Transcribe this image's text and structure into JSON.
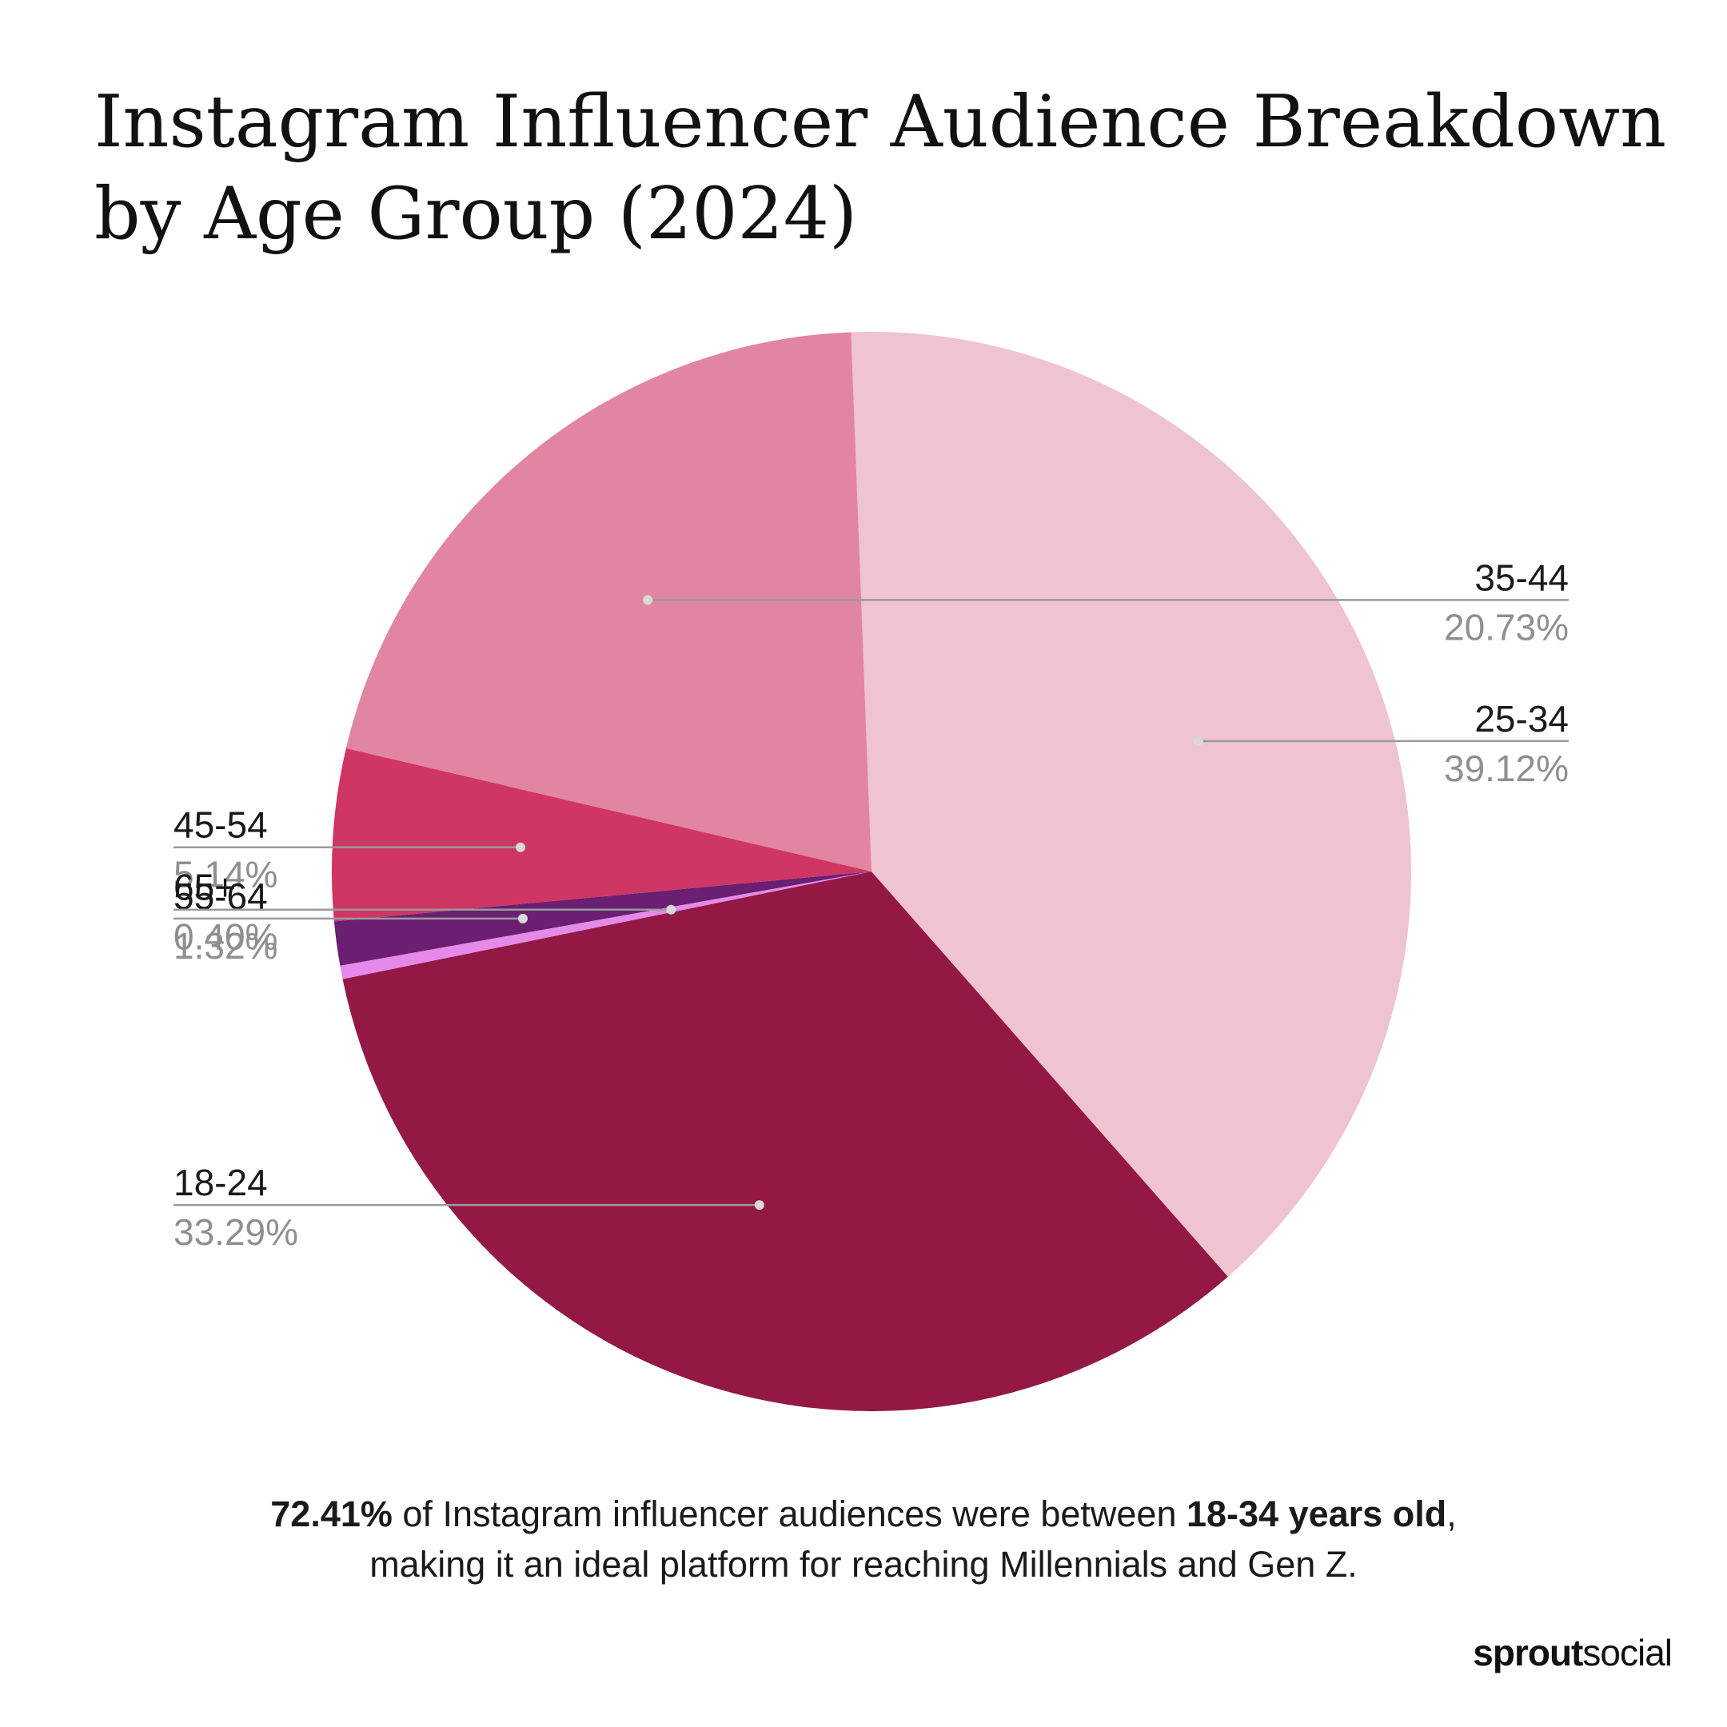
{
  "title": "Instagram Influencer Audience Breakdown by Age Group (2024)",
  "chart_data": {
    "type": "pie",
    "start_angle_deg": 191.5,
    "direction": "counterclockwise",
    "categories": [
      "18-24",
      "25-34",
      "35-44",
      "45-54",
      "55-64",
      "65+"
    ],
    "values": [
      33.29,
      39.12,
      20.73,
      5.14,
      1.32,
      0.4
    ],
    "value_labels": [
      "33.29%",
      "39.12%",
      "20.73%",
      "5.14%",
      "1.32%",
      "0.40%"
    ],
    "colors": [
      "#941846",
      "#efc3cf",
      "#e285a1",
      "#cf3663",
      "#6a1f73",
      "#e58ae8"
    ],
    "label_placement": [
      "left",
      "right",
      "right",
      "left",
      "left",
      "left"
    ]
  },
  "footnote": {
    "bold_1": "72.41%",
    "text_1": " of Instagram influencer audiences were between ",
    "bold_2": "18-34 years old",
    "text_2": ",",
    "line_2": "making it an ideal platform for reaching Millennials and Gen Z."
  },
  "brand": {
    "part_1": "sprout",
    "part_2": "social"
  }
}
